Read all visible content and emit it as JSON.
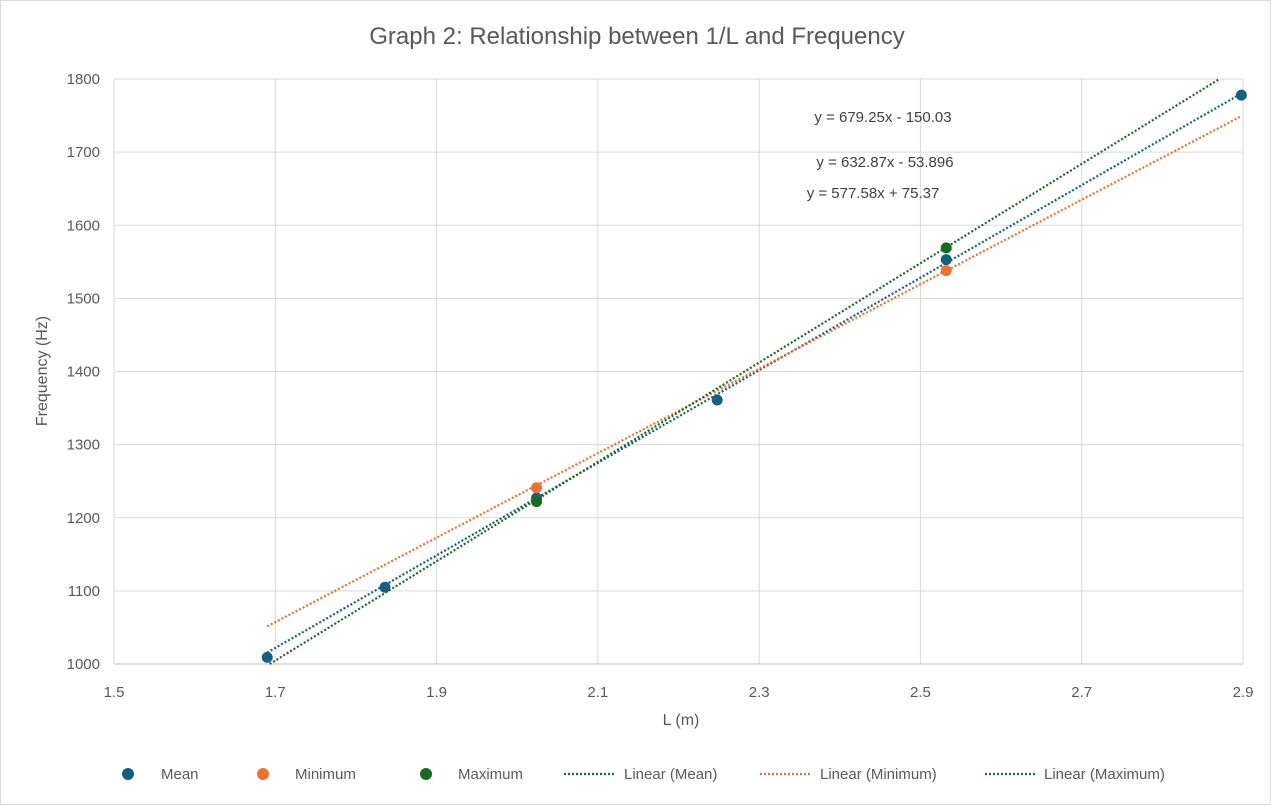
{
  "chart_data": {
    "type": "scatter",
    "title": "Graph 2: Relationship between 1/L and Frequency",
    "xlabel": "L (m)",
    "ylabel": "Frequency (Hz)",
    "xlim": [
      1.5,
      2.9
    ],
    "ylim": [
      1000,
      1800
    ],
    "x_ticks": [
      "1.5",
      "1.7",
      "1.9",
      "2.1",
      "2.3",
      "2.5",
      "2.7",
      "2.9"
    ],
    "y_ticks": [
      "1000",
      "1100",
      "1200",
      "1300",
      "1400",
      "1500",
      "1600",
      "1700",
      "1800"
    ],
    "grid": true,
    "legend_position": "bottom",
    "series": [
      {
        "name": "Mean",
        "color": "#156082",
        "points": [
          [
            1.69,
            1009
          ],
          [
            1.836,
            1105
          ],
          [
            2.024,
            1227
          ],
          [
            2.248,
            1361
          ],
          [
            2.532,
            1553
          ],
          [
            2.898,
            1778
          ]
        ]
      },
      {
        "name": "Minimum",
        "color": "#E97132",
        "points": [
          [
            2.024,
            1241
          ],
          [
            2.532,
            1538
          ]
        ]
      },
      {
        "name": "Maximum",
        "color": "#196B24",
        "points": [
          [
            2.024,
            1222
          ],
          [
            2.532,
            1569
          ]
        ]
      }
    ],
    "trendlines": [
      {
        "name": "Linear (Mean)",
        "color": "#156082",
        "slope": 632.87,
        "intercept": -53.896,
        "x_range": [
          1.69,
          2.898
        ],
        "equation": "y = 632.87x - 53.896"
      },
      {
        "name": "Linear (Minimum)",
        "color": "#E97132",
        "slope": 577.58,
        "intercept": 75.37,
        "x_range": [
          1.69,
          2.898
        ],
        "equation": "y = 577.58x + 75.37"
      },
      {
        "name": "Linear (Maximum)",
        "color": "#196B24",
        "slope": 679.25,
        "intercept": -150.03,
        "x_range": [
          1.69,
          2.898
        ],
        "equation": "y = 679.25x - 150.03"
      }
    ]
  }
}
